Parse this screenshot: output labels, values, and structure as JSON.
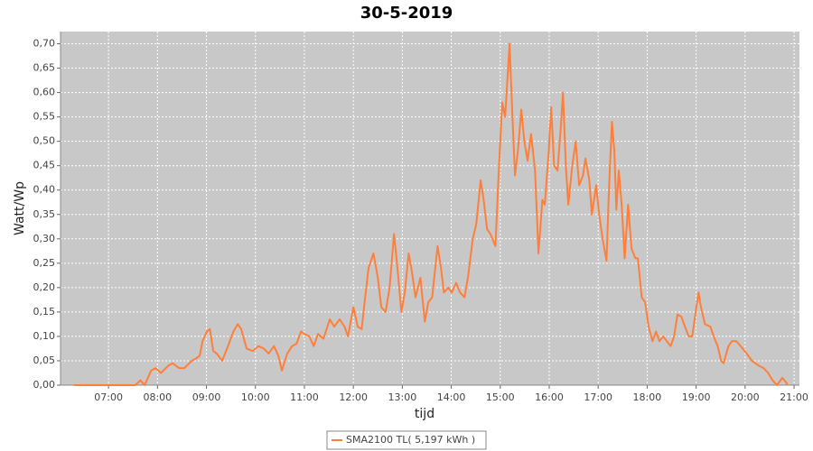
{
  "chart_data": {
    "type": "line",
    "title": "30-5-2019",
    "x_label": "tijd",
    "y_label": "Watt/Wp",
    "xlim": [
      6.02,
      21.11
    ],
    "ylim": [
      0,
      0.725
    ],
    "xticks": [
      {
        "value": 7,
        "label": "07:00"
      },
      {
        "value": 8,
        "label": "08:00"
      },
      {
        "value": 9,
        "label": "09:00"
      },
      {
        "value": 10,
        "label": "10:00"
      },
      {
        "value": 11,
        "label": "11:00"
      },
      {
        "value": 12,
        "label": "12:00"
      },
      {
        "value": 13,
        "label": "13:00"
      },
      {
        "value": 14,
        "label": "14:00"
      },
      {
        "value": 15,
        "label": "15:00"
      },
      {
        "value": 16,
        "label": "16:00"
      },
      {
        "value": 17,
        "label": "17:00"
      },
      {
        "value": 18,
        "label": "18:00"
      },
      {
        "value": 19,
        "label": "19:00"
      },
      {
        "value": 20,
        "label": "20:00"
      },
      {
        "value": 21,
        "label": "21:00"
      }
    ],
    "yticks": [
      {
        "value": 0,
        "label": "0,00"
      },
      {
        "value": 0.05,
        "label": "0,05"
      },
      {
        "value": 0.1,
        "label": "0,10"
      },
      {
        "value": 0.15,
        "label": "0,15"
      },
      {
        "value": 0.2,
        "label": "0,20"
      },
      {
        "value": 0.25,
        "label": "0,25"
      },
      {
        "value": 0.3,
        "label": "0,30"
      },
      {
        "value": 0.35,
        "label": "0,35"
      },
      {
        "value": 0.4,
        "label": "0,40"
      },
      {
        "value": 0.45,
        "label": "0,45"
      },
      {
        "value": 0.5,
        "label": "0,50"
      },
      {
        "value": 0.55,
        "label": "0,55"
      },
      {
        "value": 0.6,
        "label": "0,60"
      },
      {
        "value": 0.65,
        "label": "0,65"
      },
      {
        "value": 0.7,
        "label": "0,70"
      }
    ],
    "grid": true,
    "legend": "bottom",
    "x": [
      6.3,
      7.55,
      7.65,
      7.74,
      7.87,
      7.96,
      8.07,
      8.22,
      8.31,
      8.44,
      8.55,
      8.7,
      8.79,
      8.86,
      8.92,
      9.01,
      9.07,
      9.14,
      9.21,
      9.32,
      9.44,
      9.55,
      9.64,
      9.71,
      9.82,
      9.95,
      10.06,
      10.17,
      10.27,
      10.38,
      10.47,
      10.54,
      10.65,
      10.75,
      10.84,
      10.93,
      11.0,
      11.1,
      11.19,
      11.28,
      11.39,
      11.52,
      11.61,
      11.72,
      11.82,
      11.89,
      12.0,
      12.09,
      12.17,
      12.24,
      12.31,
      12.41,
      12.5,
      12.57,
      12.66,
      12.74,
      12.83,
      12.9,
      12.98,
      13.05,
      13.13,
      13.2,
      13.27,
      13.37,
      13.46,
      13.53,
      13.61,
      13.72,
      13.79,
      13.85,
      13.94,
      14.01,
      14.1,
      14.18,
      14.27,
      14.34,
      14.44,
      14.51,
      14.6,
      14.66,
      14.73,
      14.8,
      14.9,
      14.97,
      15.04,
      15.1,
      15.19,
      15.25,
      15.3,
      15.36,
      15.43,
      15.49,
      15.56,
      15.63,
      15.71,
      15.78,
      15.86,
      15.91,
      15.99,
      16.04,
      16.1,
      16.17,
      16.23,
      16.28,
      16.34,
      16.39,
      16.47,
      16.54,
      16.61,
      16.69,
      16.74,
      16.82,
      16.87,
      16.96,
      17.02,
      17.09,
      17.17,
      17.22,
      17.28,
      17.33,
      17.37,
      17.42,
      17.48,
      17.54,
      17.61,
      17.68,
      17.76,
      17.81,
      17.89,
      17.96,
      18.03,
      18.11,
      18.18,
      18.25,
      18.33,
      18.4,
      18.48,
      18.55,
      18.62,
      18.7,
      18.77,
      18.85,
      18.92,
      18.99,
      19.05,
      19.1,
      19.18,
      19.29,
      19.36,
      19.44,
      19.51,
      19.56,
      19.66,
      19.73,
      19.82,
      19.91,
      20.03,
      20.14,
      20.21,
      20.28,
      20.38,
      20.47,
      20.56,
      20.65,
      20.76,
      20.84,
      20.87
    ],
    "series": [
      {
        "name": "SMA2100 TL( 5,197 kWh )",
        "color": "#ff7f3a",
        "values": [
          0,
          0,
          0.01,
          0,
          0.03,
          0.035,
          0.025,
          0.04,
          0.045,
          0.035,
          0.035,
          0.05,
          0.055,
          0.06,
          0.09,
          0.11,
          0.115,
          0.07,
          0.065,
          0.05,
          0.08,
          0.11,
          0.125,
          0.115,
          0.075,
          0.07,
          0.08,
          0.075,
          0.065,
          0.08,
          0.06,
          0.03,
          0.065,
          0.08,
          0.085,
          0.11,
          0.105,
          0.1,
          0.08,
          0.105,
          0.095,
          0.135,
          0.12,
          0.135,
          0.12,
          0.1,
          0.16,
          0.12,
          0.115,
          0.18,
          0.24,
          0.27,
          0.22,
          0.16,
          0.15,
          0.2,
          0.31,
          0.24,
          0.15,
          0.19,
          0.27,
          0.23,
          0.18,
          0.22,
          0.13,
          0.17,
          0.18,
          0.285,
          0.24,
          0.19,
          0.2,
          0.19,
          0.21,
          0.19,
          0.18,
          0.22,
          0.3,
          0.33,
          0.42,
          0.38,
          0.32,
          0.31,
          0.285,
          0.44,
          0.58,
          0.55,
          0.7,
          0.55,
          0.43,
          0.48,
          0.565,
          0.5,
          0.46,
          0.515,
          0.44,
          0.27,
          0.38,
          0.37,
          0.48,
          0.57,
          0.45,
          0.44,
          0.52,
          0.6,
          0.45,
          0.37,
          0.45,
          0.5,
          0.41,
          0.43,
          0.465,
          0.42,
          0.35,
          0.41,
          0.35,
          0.3,
          0.255,
          0.4,
          0.54,
          0.48,
          0.36,
          0.44,
          0.37,
          0.26,
          0.37,
          0.28,
          0.26,
          0.26,
          0.18,
          0.17,
          0.12,
          0.09,
          0.11,
          0.09,
          0.1,
          0.09,
          0.08,
          0.1,
          0.145,
          0.14,
          0.12,
          0.1,
          0.1,
          0.15,
          0.19,
          0.16,
          0.125,
          0.12,
          0.1,
          0.08,
          0.05,
          0.045,
          0.08,
          0.09,
          0.09,
          0.08,
          0.065,
          0.05,
          0.045,
          0.04,
          0.035,
          0.025,
          0.01,
          0,
          0.015,
          0.005,
          0
        ]
      }
    ]
  }
}
